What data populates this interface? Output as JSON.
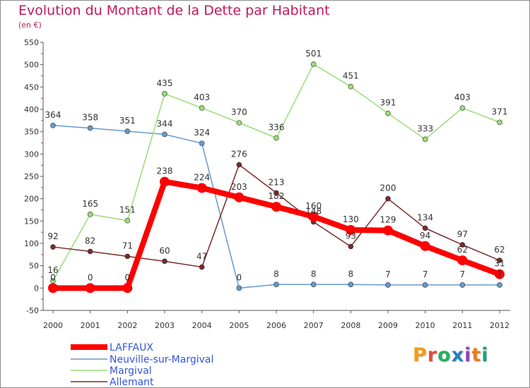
{
  "title": "Evolution du Montant de la Dette par Habitant",
  "unit_label": "(en €)",
  "logo": {
    "text": "Proxiti",
    "colors": [
      "#f39c12",
      "#e74c3c",
      "#27ae60",
      "#2980b9",
      "#8e44ad",
      "#e67e22",
      "#16a085"
    ]
  },
  "chart_data": {
    "type": "line",
    "title": "Evolution du Montant de la Dette par Habitant",
    "ylabel": "(en €)",
    "xlabel": "",
    "ylim": [
      -50,
      550
    ],
    "y_ticks": [
      -50,
      0,
      50,
      100,
      150,
      200,
      250,
      300,
      350,
      400,
      450,
      500,
      550
    ],
    "x": [
      "2000",
      "2001",
      "2002",
      "2003",
      "2004",
      "2005",
      "2006",
      "2007",
      "2008",
      "2009",
      "2010",
      "2011",
      "2012"
    ],
    "grid": false,
    "legend_position": "bottom-left",
    "series": [
      {
        "name": "LAFFAUX",
        "color": "#ff0000",
        "width": 8,
        "marker": 7,
        "values": [
          0,
          0,
          0,
          238,
          224,
          203,
          182,
          160,
          130,
          129,
          94,
          62,
          31
        ]
      },
      {
        "name": "Neuville-sur-Margival",
        "color": "#6699cc",
        "width": 1.5,
        "marker": 3.5,
        "values": [
          364,
          358,
          351,
          344,
          324,
          0,
          8,
          8,
          8,
          7,
          7,
          7,
          7
        ]
      },
      {
        "name": "Margival",
        "color": "#99dd77",
        "width": 1.5,
        "marker": 3.5,
        "values": [
          16,
          165,
          151,
          435,
          403,
          370,
          336,
          501,
          451,
          391,
          333,
          403,
          371
        ]
      },
      {
        "name": "Allemant",
        "color": "#7a2a2a",
        "width": 1.5,
        "marker": 3.5,
        "values": [
          92,
          82,
          71,
          60,
          47,
          276,
          213,
          148,
          93,
          200,
          134,
          97,
          62
        ]
      }
    ]
  }
}
